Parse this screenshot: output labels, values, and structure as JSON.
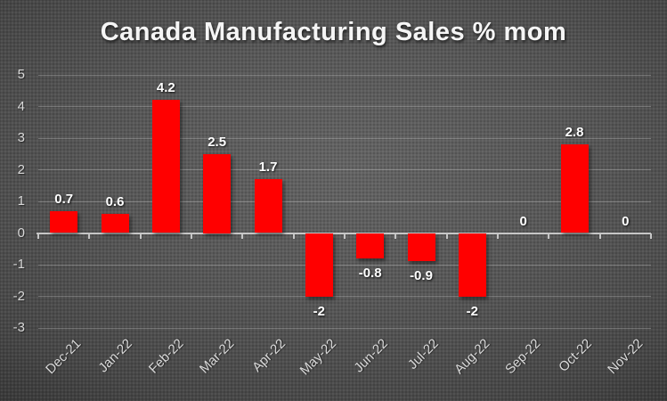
{
  "chart_data": {
    "type": "bar",
    "title": "Canada Manufacturing Sales % mom",
    "categories": [
      "Dec-21",
      "Jan-22",
      "Feb-22",
      "Mar-22",
      "Apr-22",
      "May-22",
      "Jun-22",
      "Jul-22",
      "Aug-22",
      "Sep-22",
      "Oct-22",
      "Nov-22"
    ],
    "values": [
      0.7,
      0.6,
      4.2,
      2.5,
      1.7,
      -2,
      -0.8,
      -0.9,
      -2,
      0,
      2.8,
      0
    ],
    "value_labels": [
      "0.7",
      "0.6",
      "4.2",
      "2.5",
      "1.7",
      "-2",
      "-0.8",
      "-0.9",
      "-2",
      "0",
      "2.8",
      "0"
    ],
    "xlabel": "",
    "ylabel": "",
    "ylim": [
      -3,
      5
    ],
    "ytick_step": 1,
    "yticks": [
      5,
      4,
      3,
      2,
      1,
      0,
      -1,
      -2,
      -3
    ],
    "grid": true,
    "legend": "none",
    "bar_color": "#ff0000",
    "value_label_color": "#ffffff",
    "axis_text_color": "#d9d9d9",
    "title_color": "#f5f5f5"
  }
}
